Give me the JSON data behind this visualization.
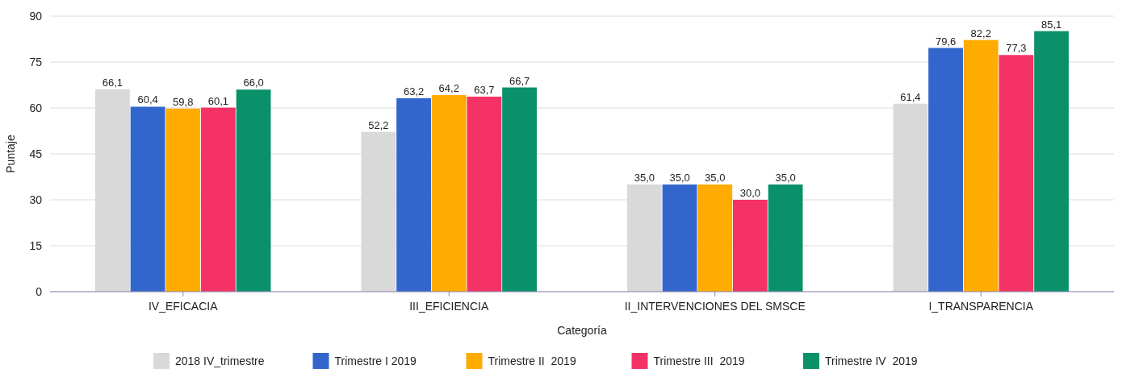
{
  "chart_data": {
    "type": "bar",
    "xlabel": "Categoría",
    "ylabel": "Puntaje",
    "categories": [
      "IV_EFICACIA",
      "III_EFICIENCIA",
      "II_INTERVENCIONES DEL SMSCE",
      "I_TRANSPARENCIA"
    ],
    "series": [
      {
        "name": "2018 IV_trimestre",
        "color": "#d9d9d9",
        "values": [
          66.1,
          52.2,
          35.0,
          61.4
        ],
        "value_labels": [
          "66,1",
          "52,2",
          "35,0",
          "61,4"
        ]
      },
      {
        "name": "Trimestre I 2019",
        "color": "#3366cc",
        "values": [
          60.4,
          63.2,
          35.0,
          79.6
        ],
        "value_labels": [
          "60,4",
          "63,2",
          "35,0",
          "79,6"
        ]
      },
      {
        "name": "Trimestre II  2019",
        "color": "#ffab00",
        "values": [
          59.8,
          64.2,
          35.0,
          82.2
        ],
        "value_labels": [
          "59,8",
          "64,2",
          "35,0",
          "82,2"
        ]
      },
      {
        "name": "Trimestre III  2019",
        "color": "#f53265",
        "values": [
          60.1,
          63.7,
          30.0,
          77.3
        ],
        "value_labels": [
          "60,1",
          "63,7",
          "30,0",
          "77,3"
        ]
      },
      {
        "name": "Trimestre IV  2019",
        "color": "#0a916a",
        "values": [
          66.0,
          66.7,
          35.0,
          85.1
        ],
        "value_labels": [
          "66,0",
          "66,7",
          "35,0",
          "85,1"
        ]
      }
    ],
    "ylim": [
      0,
      90
    ],
    "yticks": [
      0,
      15,
      30,
      45,
      60,
      75,
      90
    ],
    "grid": "y",
    "legend": "bottom"
  }
}
